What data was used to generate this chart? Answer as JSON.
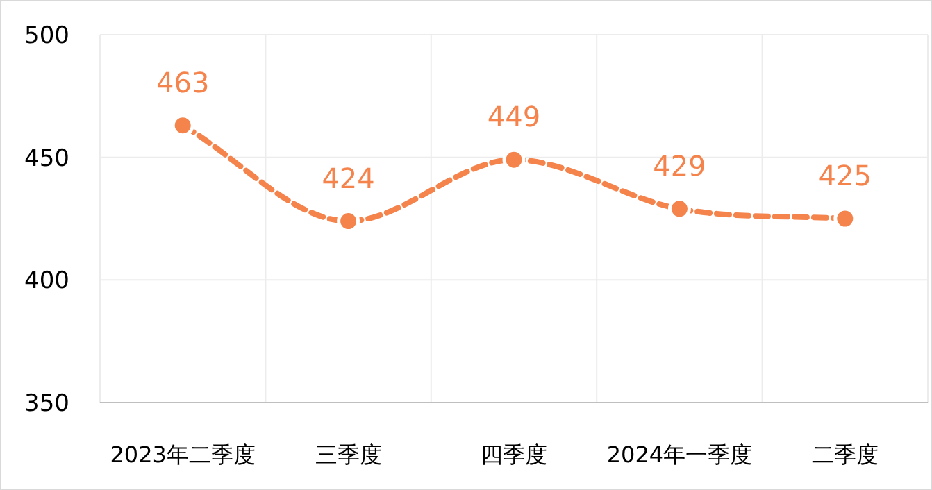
{
  "chart_data": {
    "type": "line",
    "categories": [
      "2023年二季度",
      "三季度",
      "四季度",
      "2024年一季度",
      "二季度"
    ],
    "series": [
      {
        "color": "#f4834c",
        "values": [
          463,
          424,
          449,
          429,
          425
        ]
      }
    ],
    "ylim": [
      350,
      500
    ],
    "yticks": [
      350,
      400,
      450,
      500
    ],
    "grid": true,
    "data_labels": true,
    "marker": "circle",
    "line_style": "dashed"
  }
}
